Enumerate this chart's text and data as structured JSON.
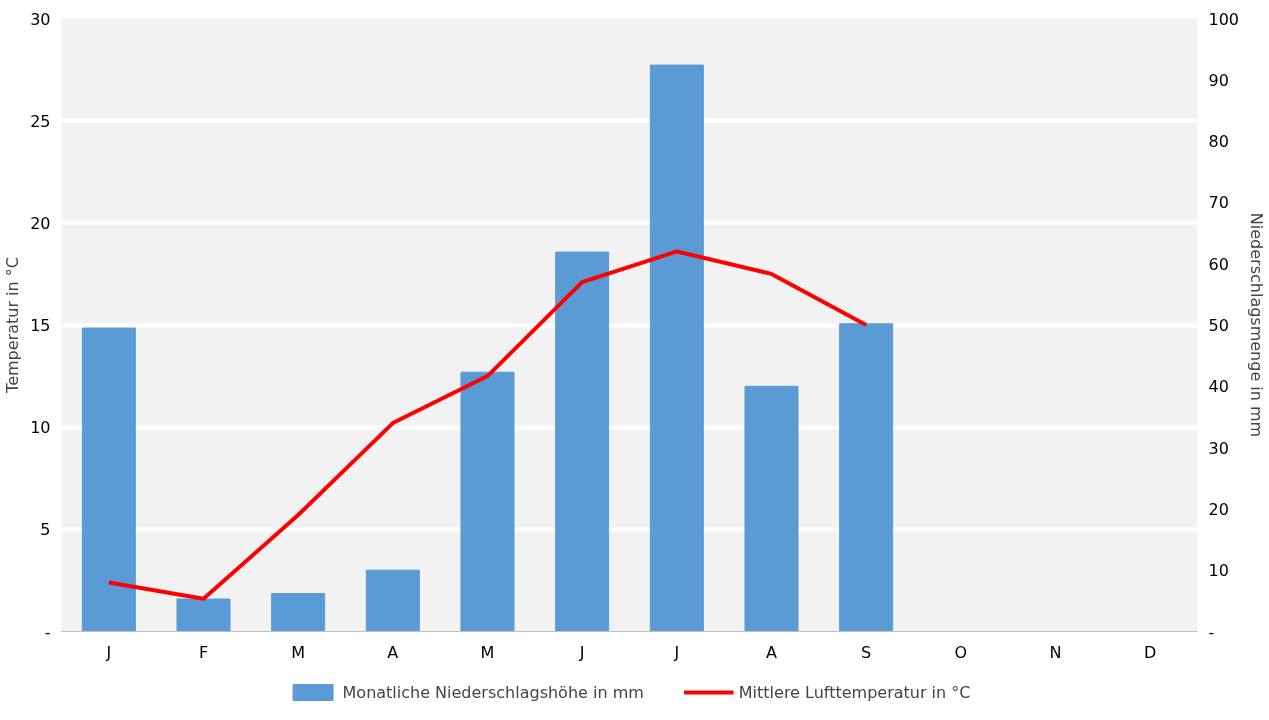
{
  "chart_data": {
    "type": "bar",
    "categories": [
      "J",
      "F",
      "M",
      "A",
      "M",
      "J",
      "J",
      "A",
      "S",
      "O",
      "N",
      "D"
    ],
    "ylabel": "Temperatur in °C",
    "y2label": "Niederschlagsmenge in mm",
    "ylim": [
      0,
      30
    ],
    "yticks": [
      {
        "value": 0,
        "label": "-"
      },
      5,
      10,
      15,
      20,
      25,
      30
    ],
    "y2lim": [
      0,
      100
    ],
    "y2ticks": [
      {
        "value": 0,
        "label": "-"
      },
      10,
      20,
      30,
      40,
      50,
      60,
      70,
      80,
      90,
      100
    ],
    "grid": "y",
    "legend": "bottom",
    "series": [
      {
        "name": "Monatliche Niederschlagshöhe in mm",
        "axis": "y2",
        "color": "#5b9bd5",
        "values": [
          49.5,
          5.3,
          6.2,
          10.0,
          42.3,
          61.9,
          92.4,
          40.0,
          50.2,
          null,
          null,
          null
        ]
      },
      {
        "name": "Mittlere Lufttemperatur in °C",
        "type": "line",
        "axis": "y",
        "color": "#ff0000",
        "values": [
          2.4,
          1.6,
          5.7,
          10.2,
          12.5,
          17.1,
          18.6,
          17.5,
          15.0,
          null,
          null,
          null
        ]
      }
    ]
  }
}
